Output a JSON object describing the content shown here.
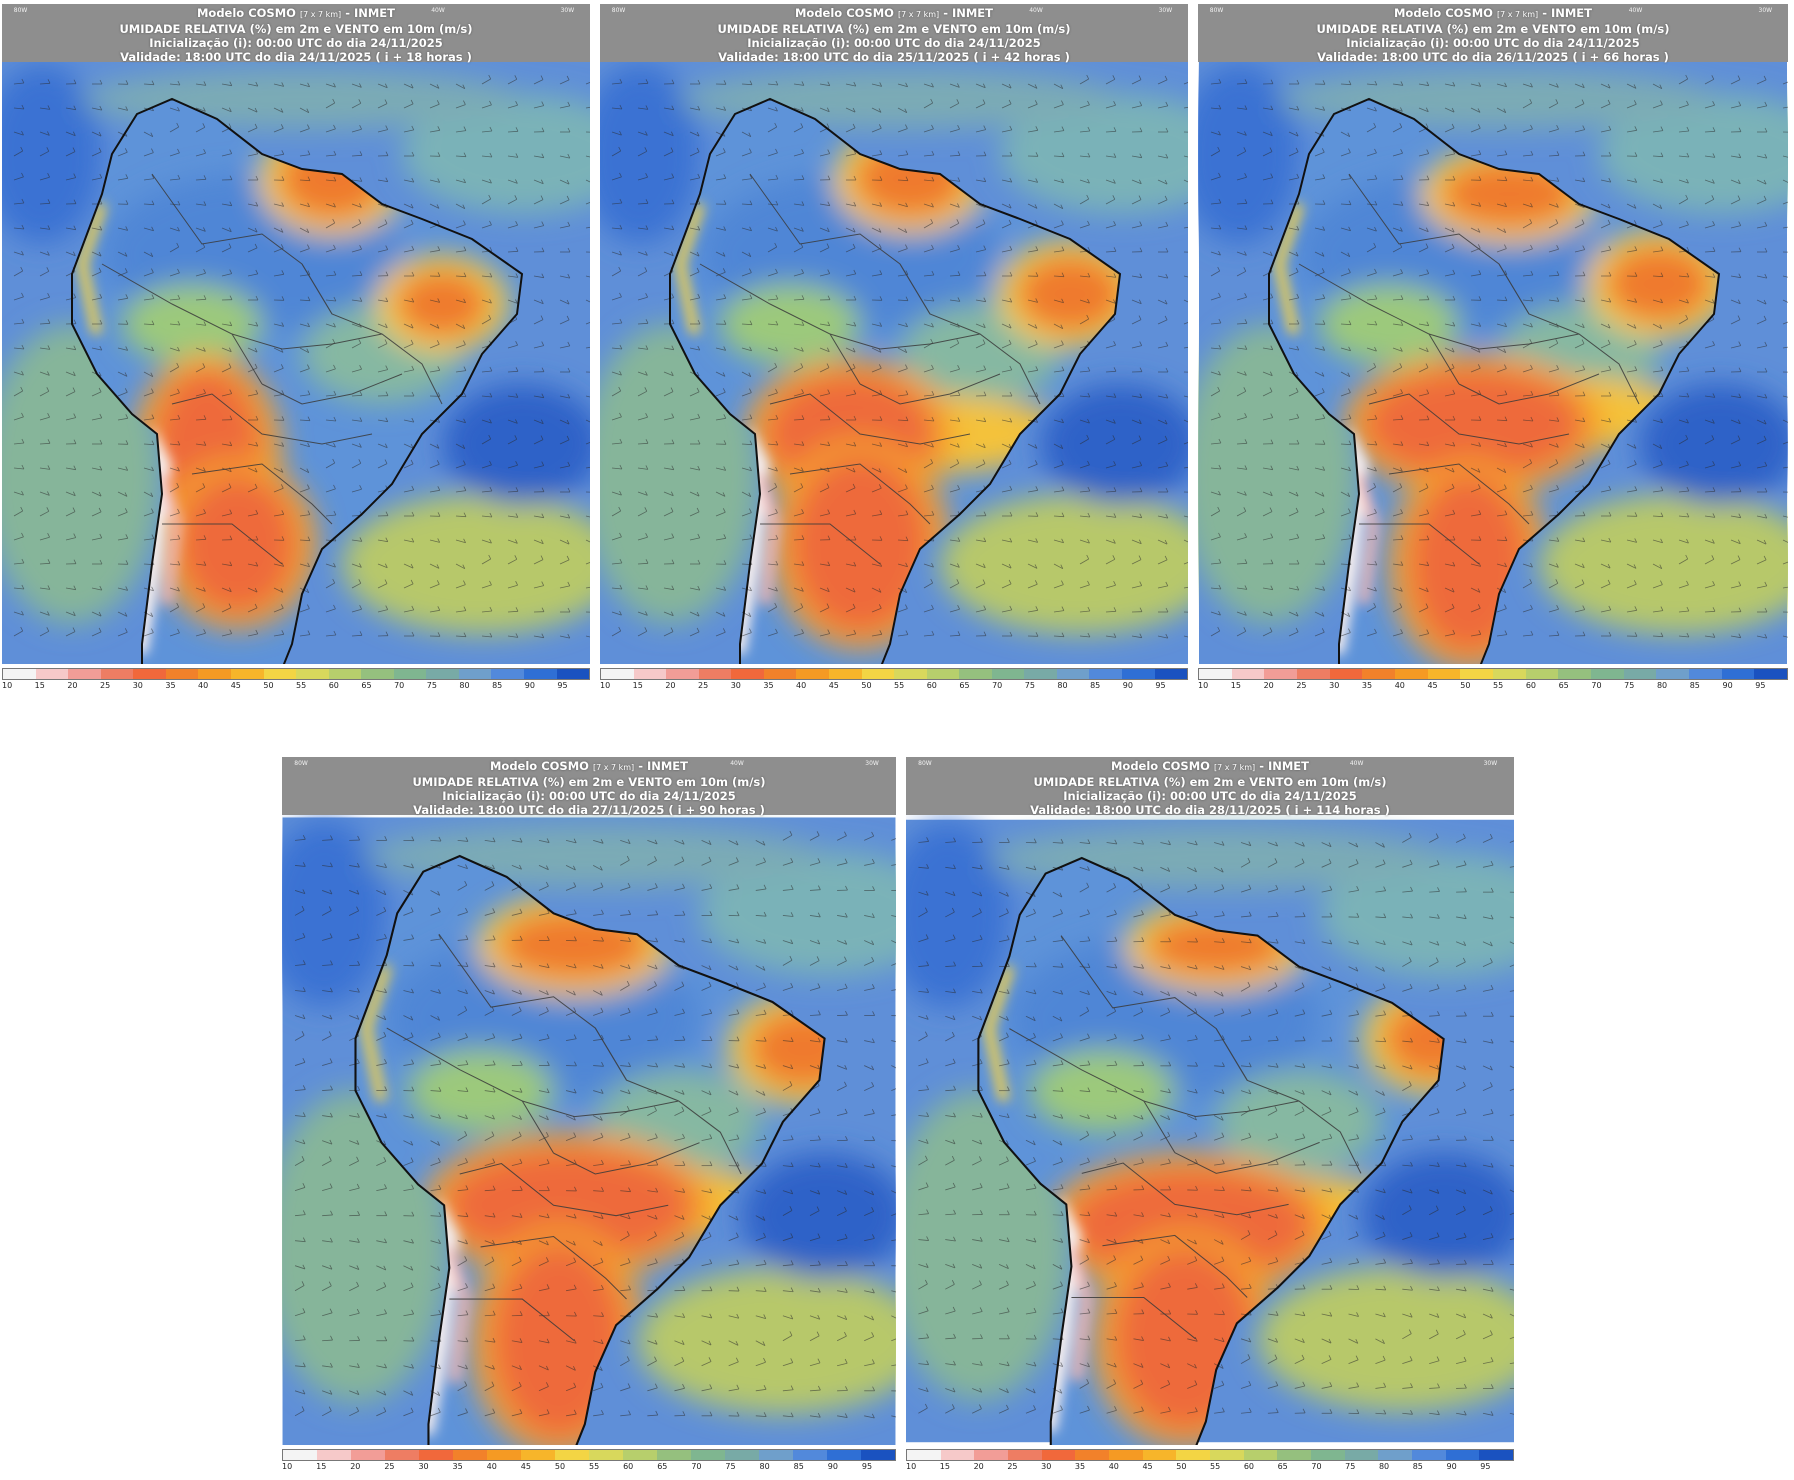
{
  "colorbar": {
    "ticks": [
      "10",
      "15",
      "20",
      "25",
      "30",
      "35",
      "40",
      "45",
      "50",
      "55",
      "60",
      "65",
      "70",
      "75",
      "80",
      "85",
      "90",
      "95"
    ],
    "colors": [
      "#f4f4f4",
      "#f6c9c9",
      "#f29d97",
      "#ee7d63",
      "#f1683b",
      "#f2812a",
      "#f59a23",
      "#f7b52a",
      "#f3d544",
      "#d8d85c",
      "#b7cf6c",
      "#95c07e",
      "#7fb690",
      "#78aaa6",
      "#6f9fcb",
      "#5289db",
      "#2f6fd5",
      "#1a52c0"
    ]
  },
  "panels": [
    {
      "id": "p1",
      "title_model": "Modelo COSMO",
      "title_res": "[7 x 7 km]",
      "title_org": "- INMET",
      "line2": "UMIDADE RELATIVA (%) em 2m e VENTO em 10m (m/s)",
      "line3": "Inicialização (i): 00:00 UTC do dia 24/11/2025",
      "line4": "Validade: 18:00 UTC do dia 24/11/2025 ( i + 18 horas )",
      "lon_labels": [
        "80W",
        "40W",
        "30W"
      ]
    },
    {
      "id": "p2",
      "title_model": "Modelo COSMO",
      "title_res": "[7 x 7 km]",
      "title_org": "- INMET",
      "line2": "UMIDADE RELATIVA (%) em 2m e VENTO em 10m (m/s)",
      "line3": "Inicialização (i): 00:00 UTC do dia 24/11/2025",
      "line4": "Validade: 18:00 UTC do dia 25/11/2025 ( i + 42 horas )",
      "lon_labels": [
        "80W",
        "40W",
        "30W"
      ]
    },
    {
      "id": "p3",
      "title_model": "Modelo COSMO",
      "title_res": "[7 x 7 km]",
      "title_org": "- INMET",
      "line2": "UMIDADE RELATIVA (%) em 2m e VENTO em 10m (m/s)",
      "line3": "Inicialização (i): 00:00 UTC do dia 24/11/2025",
      "line4": "Validade: 18:00 UTC do dia 26/11/2025 ( i + 66 horas )",
      "lon_labels": [
        "80W",
        "40W",
        "30W"
      ]
    },
    {
      "id": "p4",
      "title_model": "Modelo COSMO",
      "title_res": "[7 x 7 km]",
      "title_org": "- INMET",
      "line2": "UMIDADE RELATIVA (%) em 2m e VENTO em 10m (m/s)",
      "line3": "Inicialização (i): 00:00 UTC do dia 24/11/2025",
      "line4": "Validade: 18:00 UTC do dia 27/11/2025 ( i + 90 horas )",
      "lon_labels": [
        "80W",
        "40W",
        "30W"
      ]
    },
    {
      "id": "p5",
      "title_model": "Modelo COSMO",
      "title_res": "[7 x 7 km]",
      "title_org": "- INMET",
      "line2": "UMIDADE RELATIVA (%) em 2m e VENTO em 10m (m/s)",
      "line3": "Inicialização (i): 00:00 UTC do dia 24/11/2025",
      "line4": "Validade: 18:00 UTC do dia 28/11/2025 ( i + 114 horas )",
      "lon_labels": [
        "80W",
        "40W",
        "30W"
      ]
    }
  ]
}
